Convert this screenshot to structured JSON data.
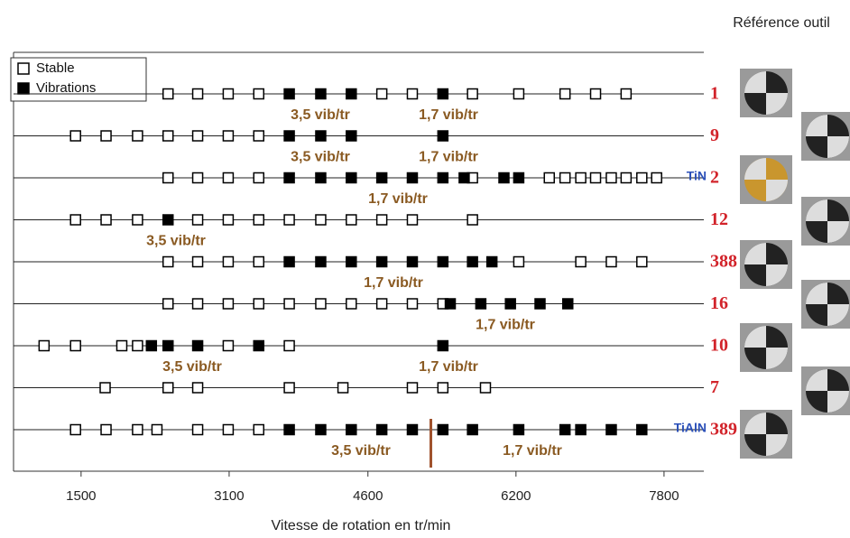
{
  "chart_data": {
    "type": "strip",
    "header": "Référence outil",
    "xlabel": "Vitesse de rotation en tr/min",
    "xlim": [
      770,
      8230
    ],
    "xticks": [
      1500,
      3100,
      4600,
      6200,
      7800
    ],
    "series": [
      {
        "name": "Stable",
        "color": "#ffffff"
      },
      {
        "name": "Vibrations",
        "color": "#000000"
      }
    ],
    "rows": [
      {
        "label": "1",
        "stable": [
          2440,
          2760,
          3090,
          3420,
          4750,
          5080,
          5730,
          6230,
          6730,
          7060,
          7390
        ],
        "vibrations": [
          3750,
          4090,
          4420,
          5410
        ],
        "annotations": [
          "3,5 vib/tr",
          "1,7 vib/tr"
        ]
      },
      {
        "label": "9",
        "stable": [
          1440,
          1770,
          2110,
          2440,
          2760,
          3090,
          3420
        ],
        "vibrations": [
          3750,
          4090,
          4420,
          5410
        ],
        "annotations": [
          "3,5 vib/tr",
          "1,7 vib/tr"
        ]
      },
      {
        "label": "2",
        "coating": "TiN",
        "stable": [
          2440,
          2760,
          3090,
          3420,
          5730,
          6560,
          6730,
          6900,
          7060,
          7230,
          7390,
          7560,
          7720
        ],
        "vibrations": [
          3750,
          4090,
          4420,
          4750,
          5080,
          5410,
          5640,
          6070,
          6230
        ],
        "annotations": [
          "1,7 vib/tr"
        ]
      },
      {
        "label": "12",
        "stable": [
          1440,
          1770,
          2110,
          2760,
          3090,
          3420,
          3750,
          4090,
          4420,
          4750,
          5080,
          5730
        ],
        "vibrations": [
          2440
        ],
        "annotations": [
          "3,5 vib/tr"
        ]
      },
      {
        "label": "388",
        "stable": [
          2440,
          2760,
          3090,
          3420,
          6230,
          6900,
          7230,
          7560
        ],
        "vibrations": [
          3750,
          4090,
          4420,
          4750,
          5080,
          5410,
          5730,
          5940
        ],
        "annotations": [
          "1,7 vib/tr"
        ]
      },
      {
        "label": "16",
        "stable": [
          2440,
          2760,
          3090,
          3420,
          3750,
          4090,
          4420,
          4750,
          5080,
          5410
        ],
        "vibrations": [
          5490,
          5820,
          6140,
          6460,
          6760
        ],
        "annotations": [
          "1,7 vib/tr"
        ]
      },
      {
        "label": "10",
        "stable": [
          1100,
          1440,
          1940,
          2110,
          3090,
          3750
        ],
        "vibrations": [
          2260,
          2440,
          2760,
          3420,
          5410
        ],
        "annotations": [
          "3,5 vib/tr",
          "1,7 vib/tr"
        ]
      },
      {
        "label": "7",
        "stable": [
          1760,
          2440,
          2760,
          3750,
          4330,
          5080,
          5410,
          5870
        ]
      },
      {
        "label": "389",
        "coating": "TiAlN",
        "marker_line": 5280,
        "stable": [
          1440,
          1770,
          2110,
          2320,
          2760,
          3090,
          3420
        ],
        "vibrations": [
          3750,
          4090,
          4420,
          4750,
          5080,
          5410,
          5730,
          6230,
          6730,
          6900,
          7230,
          7560
        ],
        "annotations": [
          "3,5 vib/tr",
          "1,7 vib/tr"
        ]
      }
    ]
  }
}
